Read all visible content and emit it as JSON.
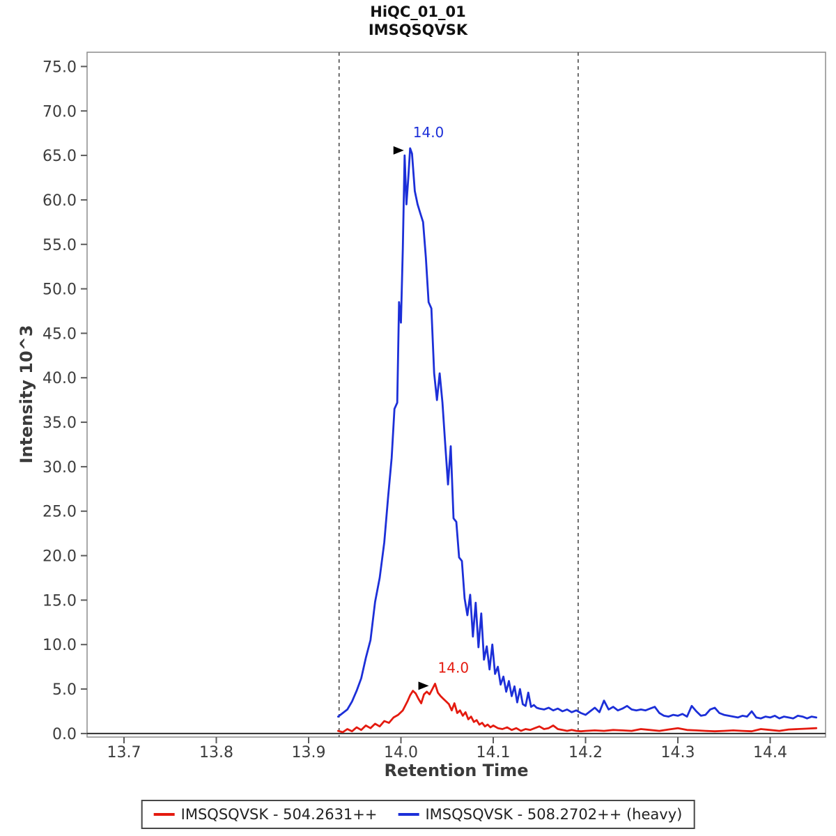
{
  "chart_data": {
    "type": "line",
    "title_line1": "HiQC_01_01",
    "title_line2": "IMSQSQVSK",
    "xlabel": "Retention Time",
    "ylabel": "Intensity 10^3",
    "xlim": [
      13.66,
      14.46
    ],
    "ylim": [
      -0.4,
      76.6
    ],
    "xticks": [
      13.7,
      13.8,
      13.9,
      14.0,
      14.1,
      14.2,
      14.3,
      14.4
    ],
    "yticks": [
      0,
      5,
      10,
      15,
      20,
      25,
      30,
      35,
      40,
      45,
      50,
      55,
      60,
      65,
      70,
      75
    ],
    "grid": false,
    "legend_position": "bottom",
    "boundaries": [
      13.933,
      14.192
    ],
    "colors": {
      "frame": "#8c8c8c",
      "axis_baseline": "#2e2e2e",
      "tick": "#5a5a5a",
      "tick_label": "#3c3c3c",
      "boundary": "#4a4a4a",
      "annotation_arrow": "#000000"
    },
    "series": [
      {
        "name": "IMSQSQVSK - 504.2631++",
        "color": "#e41a0f",
        "peak_label": "14.0",
        "peak_x": 14.037,
        "peak_y": 5.6,
        "points": [
          [
            13.932,
            0.3
          ],
          [
            13.937,
            0.15
          ],
          [
            13.942,
            0.5
          ],
          [
            13.947,
            0.25
          ],
          [
            13.952,
            0.7
          ],
          [
            13.957,
            0.4
          ],
          [
            13.962,
            0.9
          ],
          [
            13.967,
            0.6
          ],
          [
            13.972,
            1.1
          ],
          [
            13.977,
            0.8
          ],
          [
            13.982,
            1.4
          ],
          [
            13.987,
            1.2
          ],
          [
            13.992,
            1.8
          ],
          [
            13.997,
            2.1
          ],
          [
            14.002,
            2.6
          ],
          [
            14.007,
            3.6
          ],
          [
            14.01,
            4.3
          ],
          [
            14.013,
            4.8
          ],
          [
            14.016,
            4.5
          ],
          [
            14.019,
            3.9
          ],
          [
            14.022,
            3.4
          ],
          [
            14.025,
            4.4
          ],
          [
            14.028,
            4.7
          ],
          [
            14.031,
            4.4
          ],
          [
            14.034,
            5.0
          ],
          [
            14.037,
            5.6
          ],
          [
            14.04,
            4.6
          ],
          [
            14.043,
            4.2
          ],
          [
            14.046,
            3.9
          ],
          [
            14.049,
            3.6
          ],
          [
            14.052,
            3.3
          ],
          [
            14.055,
            2.6
          ],
          [
            14.058,
            3.4
          ],
          [
            14.061,
            2.3
          ],
          [
            14.064,
            2.6
          ],
          [
            14.067,
            2.0
          ],
          [
            14.07,
            2.4
          ],
          [
            14.073,
            1.6
          ],
          [
            14.076,
            1.9
          ],
          [
            14.079,
            1.3
          ],
          [
            14.082,
            1.5
          ],
          [
            14.085,
            1.0
          ],
          [
            14.088,
            1.2
          ],
          [
            14.091,
            0.8
          ],
          [
            14.094,
            1.0
          ],
          [
            14.097,
            0.7
          ],
          [
            14.1,
            0.9
          ],
          [
            14.105,
            0.6
          ],
          [
            14.11,
            0.5
          ],
          [
            14.115,
            0.7
          ],
          [
            14.12,
            0.4
          ],
          [
            14.125,
            0.6
          ],
          [
            14.13,
            0.3
          ],
          [
            14.135,
            0.5
          ],
          [
            14.14,
            0.4
          ],
          [
            14.145,
            0.6
          ],
          [
            14.15,
            0.8
          ],
          [
            14.155,
            0.5
          ],
          [
            14.16,
            0.6
          ],
          [
            14.165,
            0.9
          ],
          [
            14.17,
            0.5
          ],
          [
            14.175,
            0.4
          ],
          [
            14.18,
            0.3
          ],
          [
            14.185,
            0.4
          ],
          [
            14.19,
            0.3
          ],
          [
            14.195,
            0.25
          ],
          [
            14.2,
            0.3
          ],
          [
            14.21,
            0.35
          ],
          [
            14.22,
            0.3
          ],
          [
            14.23,
            0.4
          ],
          [
            14.24,
            0.35
          ],
          [
            14.25,
            0.3
          ],
          [
            14.26,
            0.5
          ],
          [
            14.27,
            0.4
          ],
          [
            14.28,
            0.3
          ],
          [
            14.29,
            0.45
          ],
          [
            14.3,
            0.6
          ],
          [
            14.31,
            0.4
          ],
          [
            14.32,
            0.35
          ],
          [
            14.33,
            0.3
          ],
          [
            14.34,
            0.25
          ],
          [
            14.35,
            0.3
          ],
          [
            14.36,
            0.35
          ],
          [
            14.37,
            0.3
          ],
          [
            14.38,
            0.25
          ],
          [
            14.39,
            0.5
          ],
          [
            14.4,
            0.4
          ],
          [
            14.41,
            0.3
          ],
          [
            14.42,
            0.45
          ],
          [
            14.43,
            0.5
          ],
          [
            14.44,
            0.55
          ],
          [
            14.45,
            0.6
          ]
        ]
      },
      {
        "name": "IMSQSQVSK - 508.2702++ (heavy)",
        "color": "#1c2fd8",
        "peak_label": "14.0",
        "peak_x": 14.01,
        "peak_y": 65.8,
        "points": [
          [
            13.932,
            1.9
          ],
          [
            13.937,
            2.3
          ],
          [
            13.942,
            2.7
          ],
          [
            13.947,
            3.6
          ],
          [
            13.952,
            4.8
          ],
          [
            13.957,
            6.2
          ],
          [
            13.962,
            8.5
          ],
          [
            13.967,
            10.5
          ],
          [
            13.972,
            14.8
          ],
          [
            13.977,
            17.5
          ],
          [
            13.982,
            21.5
          ],
          [
            13.986,
            26.5
          ],
          [
            13.99,
            31.0
          ],
          [
            13.993,
            36.5
          ],
          [
            13.996,
            37.2
          ],
          [
            13.998,
            48.5
          ],
          [
            14.0,
            46.2
          ],
          [
            14.002,
            54.5
          ],
          [
            14.004,
            65.0
          ],
          [
            14.006,
            59.5
          ],
          [
            14.008,
            62.5
          ],
          [
            14.01,
            65.8
          ],
          [
            14.012,
            65.2
          ],
          [
            14.015,
            61.0
          ],
          [
            14.018,
            59.5
          ],
          [
            14.021,
            58.5
          ],
          [
            14.024,
            57.5
          ],
          [
            14.027,
            53.5
          ],
          [
            14.03,
            48.5
          ],
          [
            14.033,
            47.8
          ],
          [
            14.036,
            40.5
          ],
          [
            14.039,
            37.5
          ],
          [
            14.042,
            40.5
          ],
          [
            14.045,
            37.2
          ],
          [
            14.048,
            32.5
          ],
          [
            14.051,
            28.0
          ],
          [
            14.054,
            32.3
          ],
          [
            14.057,
            24.2
          ],
          [
            14.06,
            23.8
          ],
          [
            14.063,
            19.8
          ],
          [
            14.066,
            19.4
          ],
          [
            14.069,
            15.2
          ],
          [
            14.072,
            13.3
          ],
          [
            14.075,
            15.6
          ],
          [
            14.078,
            10.9
          ],
          [
            14.081,
            14.7
          ],
          [
            14.084,
            9.7
          ],
          [
            14.087,
            13.5
          ],
          [
            14.09,
            8.3
          ],
          [
            14.093,
            9.8
          ],
          [
            14.096,
            7.2
          ],
          [
            14.099,
            10.0
          ],
          [
            14.102,
            6.7
          ],
          [
            14.105,
            7.5
          ],
          [
            14.108,
            5.5
          ],
          [
            14.111,
            6.4
          ],
          [
            14.114,
            4.7
          ],
          [
            14.117,
            5.9
          ],
          [
            14.12,
            4.2
          ],
          [
            14.123,
            5.3
          ],
          [
            14.126,
            3.5
          ],
          [
            14.129,
            5.0
          ],
          [
            14.132,
            3.3
          ],
          [
            14.135,
            3.1
          ],
          [
            14.138,
            4.6
          ],
          [
            14.141,
            3.0
          ],
          [
            14.144,
            3.2
          ],
          [
            14.147,
            2.9
          ],
          [
            14.15,
            2.8
          ],
          [
            14.155,
            2.7
          ],
          [
            14.16,
            2.9
          ],
          [
            14.165,
            2.6
          ],
          [
            14.17,
            2.8
          ],
          [
            14.175,
            2.5
          ],
          [
            14.18,
            2.7
          ],
          [
            14.185,
            2.4
          ],
          [
            14.19,
            2.6
          ],
          [
            14.195,
            2.3
          ],
          [
            14.2,
            2.1
          ],
          [
            14.205,
            2.5
          ],
          [
            14.21,
            2.9
          ],
          [
            14.215,
            2.4
          ],
          [
            14.22,
            3.7
          ],
          [
            14.225,
            2.7
          ],
          [
            14.23,
            3.0
          ],
          [
            14.235,
            2.6
          ],
          [
            14.24,
            2.8
          ],
          [
            14.245,
            3.1
          ],
          [
            14.25,
            2.7
          ],
          [
            14.255,
            2.6
          ],
          [
            14.26,
            2.7
          ],
          [
            14.265,
            2.6
          ],
          [
            14.27,
            2.8
          ],
          [
            14.275,
            3.0
          ],
          [
            14.28,
            2.3
          ],
          [
            14.285,
            2.0
          ],
          [
            14.29,
            1.9
          ],
          [
            14.295,
            2.1
          ],
          [
            14.3,
            2.0
          ],
          [
            14.305,
            2.2
          ],
          [
            14.31,
            1.9
          ],
          [
            14.315,
            3.1
          ],
          [
            14.32,
            2.5
          ],
          [
            14.325,
            2.0
          ],
          [
            14.33,
            2.1
          ],
          [
            14.335,
            2.7
          ],
          [
            14.34,
            2.9
          ],
          [
            14.345,
            2.3
          ],
          [
            14.35,
            2.1
          ],
          [
            14.355,
            2.0
          ],
          [
            14.36,
            1.9
          ],
          [
            14.365,
            1.8
          ],
          [
            14.37,
            2.0
          ],
          [
            14.375,
            1.9
          ],
          [
            14.38,
            2.5
          ],
          [
            14.385,
            1.8
          ],
          [
            14.39,
            1.7
          ],
          [
            14.395,
            1.9
          ],
          [
            14.4,
            1.8
          ],
          [
            14.405,
            2.0
          ],
          [
            14.41,
            1.7
          ],
          [
            14.415,
            1.9
          ],
          [
            14.42,
            1.8
          ],
          [
            14.425,
            1.7
          ],
          [
            14.43,
            2.0
          ],
          [
            14.435,
            1.9
          ],
          [
            14.44,
            1.7
          ],
          [
            14.445,
            1.9
          ],
          [
            14.45,
            1.8
          ]
        ]
      }
    ]
  }
}
